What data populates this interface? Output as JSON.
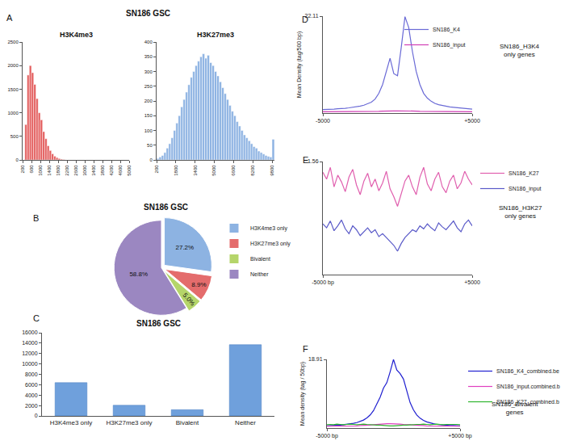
{
  "chart_data": [
    {
      "panel_label": "A",
      "title": "SN186 GSC",
      "subtitle": "H3K4me3",
      "type": "histogram",
      "bins": [
        300,
        400,
        500,
        600,
        700,
        800,
        900,
        1000,
        1100,
        1200,
        1300,
        1400,
        1500,
        1600,
        1700,
        1800,
        1900,
        2000,
        2100
      ],
      "counts": [
        750,
        1800,
        2000,
        1850,
        1600,
        1300,
        1000,
        850,
        600,
        450,
        300,
        200,
        130,
        80,
        50,
        30,
        15,
        8
      ],
      "color": "#e35d5d",
      "xlim": [
        200,
        5000
      ],
      "xticks": [
        200,
        600,
        1000,
        1400,
        1800,
        2200,
        2600,
        3000,
        3400,
        3800,
        4200,
        4600,
        5000
      ],
      "ylim": [
        0,
        2500
      ],
      "yticks": [
        0,
        500,
        1000,
        1500,
        2000,
        2500
      ],
      "grid": false
    },
    {
      "subtitle": "H3K27me3",
      "type": "histogram",
      "bins": [
        200,
        400,
        600,
        800,
        1000,
        1200,
        1400,
        1600,
        1800,
        2000,
        2200,
        2400,
        2600,
        2800,
        3000,
        3200,
        3400,
        3600,
        3800,
        4000,
        4200,
        4400,
        4600,
        4800,
        5000,
        5200,
        5400,
        5600,
        5800,
        6000,
        6200,
        6400,
        6600,
        6800,
        7000,
        7200,
        7400,
        7600,
        7800,
        8000,
        8200,
        8400,
        8600,
        8800,
        9000,
        9200,
        9400,
        9600,
        9800,
        10000
      ],
      "counts": [
        5,
        10,
        15,
        25,
        40,
        55,
        75,
        100,
        125,
        150,
        180,
        205,
        230,
        255,
        280,
        300,
        320,
        335,
        350,
        360,
        345,
        355,
        330,
        320,
        300,
        285,
        265,
        245,
        225,
        205,
        185,
        165,
        150,
        130,
        115,
        100,
        85,
        75,
        65,
        55,
        45,
        40,
        30,
        25,
        20,
        15,
        12,
        10,
        70
      ],
      "color": "#8fb4e3",
      "xlim": [
        200,
        10000
      ],
      "xticks": [
        200,
        1800,
        3400,
        5000,
        6600,
        8200,
        9800
      ],
      "ylim": [
        0,
        400
      ],
      "yticks": [
        0,
        50,
        100,
        150,
        200,
        250,
        300,
        350,
        400
      ],
      "grid": false
    },
    {
      "panel_label": "B",
      "title": "SN186 GSC",
      "type": "pie",
      "categories": [
        "H3K4me3 only",
        "H3K27me3 only",
        "Bivalent",
        "Neither"
      ],
      "values": [
        27.2,
        8.9,
        5.0,
        58.8
      ],
      "value_labels": [
        "27.2%",
        "8.9%",
        "5.0%",
        "58.8%"
      ],
      "colors": [
        "#8db3e2",
        "#e46c6c",
        "#b5d56a",
        "#9b87c1"
      ],
      "legend": "right",
      "data_labels": true
    },
    {
      "panel_label": "C",
      "title": "SN186 GSC",
      "type": "bar",
      "categories": [
        "H3K4me3 only",
        "H3K27me3 only",
        "Bivalent",
        "Neither"
      ],
      "values": [
        6400,
        2050,
        1200,
        13700
      ],
      "color": "#6fa0dc",
      "ylim": [
        0,
        16000
      ],
      "yticks": [
        0,
        2000,
        4000,
        6000,
        8000,
        10000,
        12000,
        14000,
        16000
      ],
      "grid": false
    },
    {
      "panel_label": "D",
      "type": "line",
      "x": [
        -5000,
        -4750,
        -4500,
        -4250,
        -4000,
        -3750,
        -3500,
        -3250,
        -3000,
        -2750,
        -2500,
        -2250,
        -2000,
        -1750,
        -1500,
        -1250,
        -1000,
        -750,
        -500,
        -250,
        0,
        250,
        500,
        750,
        1000,
        1250,
        1500,
        1750,
        2000,
        2250,
        2500,
        2750,
        3000,
        3250,
        3500,
        3750,
        4000,
        4250,
        4500,
        4750,
        5000
      ],
      "series": [
        {
          "name": "SN186_K4",
          "color": "#6a6ad6",
          "values": [
            0.8,
            0.8,
            0.9,
            0.9,
            1.0,
            1.0,
            1.1,
            1.2,
            1.3,
            1.4,
            1.6,
            1.8,
            2.1,
            2.5,
            3.2,
            4.5,
            6.5,
            9.5,
            12.5,
            9.0,
            8.5,
            15.0,
            22.0,
            19.5,
            14.0,
            9.5,
            6.5,
            4.5,
            3.4,
            2.7,
            2.2,
            1.9,
            1.7,
            1.5,
            1.4,
            1.3,
            1.2,
            1.1,
            1.0,
            1.0,
            0.9
          ]
        },
        {
          "name": "SN186_input",
          "color": "#d13fb5",
          "values": [
            0.3,
            0.3,
            0.35,
            0.3,
            0.3,
            0.32,
            0.3,
            0.3,
            0.33,
            0.3,
            0.3,
            0.32,
            0.35,
            0.35,
            0.4,
            0.4,
            0.45,
            0.5,
            0.5,
            0.5,
            0.5,
            0.5,
            0.55,
            0.5,
            0.5,
            0.45,
            0.4,
            0.4,
            0.35,
            0.35,
            0.33,
            0.3,
            0.3,
            0.32,
            0.3,
            0.3,
            0.3,
            0.32,
            0.3,
            0.3,
            0.3
          ]
        }
      ],
      "xlim": [
        -5000,
        5000
      ],
      "xticks": [
        {
          "value": -5000,
          "label": "-5000"
        },
        {
          "value": 5000,
          "label": "+5000"
        }
      ],
      "ylim": [
        0,
        22.11
      ],
      "yticks": [
        22.11
      ],
      "y_label": "Mean Density (tag/500 bp)",
      "legend": "top right",
      "annotation": [
        "SN186_H3K4",
        "only genes"
      ],
      "grid": false
    },
    {
      "panel_label": "E",
      "type": "line",
      "x": [
        -5000,
        -4750,
        -4500,
        -4250,
        -4000,
        -3750,
        -3500,
        -3250,
        -3000,
        -2750,
        -2500,
        -2250,
        -2000,
        -1750,
        -1500,
        -1250,
        -1000,
        -750,
        -500,
        -250,
        0,
        250,
        500,
        750,
        1000,
        1250,
        1500,
        1750,
        2000,
        2250,
        2500,
        2750,
        3000,
        3250,
        3500,
        3750,
        4000,
        4250,
        4500,
        4750,
        5000
      ],
      "series": [
        {
          "name": "SN186_K27",
          "color": "#e05fae",
          "values": [
            1.45,
            1.38,
            1.5,
            1.3,
            1.42,
            1.35,
            1.25,
            1.4,
            1.48,
            1.32,
            1.22,
            1.36,
            1.44,
            1.3,
            1.38,
            1.26,
            1.34,
            1.46,
            1.28,
            1.2,
            1.1,
            1.24,
            1.36,
            1.42,
            1.3,
            1.22,
            1.4,
            1.5,
            1.33,
            1.26,
            1.38,
            1.45,
            1.3,
            1.24,
            1.36,
            1.42,
            1.28,
            1.34,
            1.46,
            1.38,
            1.32
          ]
        },
        {
          "name": "SN186_input",
          "color": "#5a5ac8",
          "values": [
            0.92,
            0.88,
            0.95,
            0.85,
            0.9,
            0.96,
            0.87,
            0.82,
            0.9,
            0.86,
            0.8,
            0.84,
            0.88,
            0.83,
            0.86,
            0.79,
            0.82,
            0.78,
            0.74,
            0.7,
            0.64,
            0.72,
            0.78,
            0.82,
            0.86,
            0.84,
            0.9,
            0.87,
            0.92,
            0.88,
            0.85,
            0.93,
            0.89,
            0.86,
            0.91,
            0.95,
            0.88,
            0.84,
            0.92,
            0.96,
            0.9
          ]
        }
      ],
      "xlim": [
        -5000,
        5000
      ],
      "xticks": [
        {
          "value": -5000,
          "label": "-5000 bp"
        },
        {
          "value": 5000,
          "label": "+5000"
        }
      ],
      "ylim": [
        0.4,
        1.56
      ],
      "yticks": [
        1.56
      ],
      "legend": "right",
      "annotation": [
        "SN186_H3K27",
        "only genes"
      ],
      "grid": false
    },
    {
      "panel_label": "F",
      "type": "line",
      "x": [
        -5000,
        -4750,
        -4500,
        -4250,
        -4000,
        -3750,
        -3500,
        -3250,
        -3000,
        -2750,
        -2500,
        -2250,
        -2000,
        -1750,
        -1500,
        -1250,
        -1000,
        -750,
        -500,
        -250,
        0,
        250,
        500,
        750,
        1000,
        1250,
        1500,
        1750,
        2000,
        2250,
        2500,
        2750,
        3000,
        3250,
        3500,
        3750,
        4000,
        4250,
        4500,
        4750,
        5000
      ],
      "series": [
        {
          "name": "SN186_K4_combined.be",
          "color": "#1f1fd0",
          "values": [
            0.6,
            0.7,
            0.7,
            0.8,
            0.8,
            0.9,
            1.0,
            1.1,
            1.3,
            1.5,
            1.8,
            2.2,
            2.8,
            3.6,
            4.8,
            6.5,
            8.5,
            11.0,
            12.5,
            15.5,
            18.9,
            16.0,
            15.0,
            13.5,
            10.0,
            7.0,
            5.0,
            3.6,
            2.7,
            2.1,
            1.7,
            1.4,
            1.2,
            1.0,
            0.9,
            0.8,
            0.8,
            0.7,
            0.7,
            0.6,
            0.6
          ]
        },
        {
          "name": "SN186_input.combined.b",
          "color": "#e040c0",
          "values": [
            0.5,
            0.5,
            0.6,
            0.5,
            0.5,
            0.6,
            0.6,
            0.5,
            0.6,
            0.6,
            0.7,
            0.7,
            0.8,
            0.8,
            0.9,
            1.0,
            1.0,
            1.1,
            1.2,
            1.2,
            1.2,
            1.1,
            1.1,
            1.0,
            1.0,
            0.9,
            0.8,
            0.8,
            0.7,
            0.7,
            0.6,
            0.6,
            0.6,
            0.5,
            0.5,
            0.6,
            0.5,
            0.5,
            0.6,
            0.5,
            0.5
          ]
        },
        {
          "name": "SN186_K27_combined.b",
          "color": "#2db52d",
          "values": [
            0.9,
            1.0,
            0.9,
            1.1,
            1.0,
            0.9,
            1.0,
            1.1,
            1.0,
            0.9,
            1.0,
            1.1,
            1.0,
            0.9,
            0.9,
            0.8,
            0.8,
            0.7,
            0.7,
            0.6,
            0.6,
            0.7,
            0.7,
            0.8,
            0.8,
            0.9,
            0.9,
            1.0,
            1.0,
            1.1,
            1.0,
            0.9,
            1.0,
            1.1,
            1.0,
            0.9,
            1.0,
            1.0,
            1.1,
            1.0,
            0.9
          ]
        }
      ],
      "xlim": [
        -5000,
        5000
      ],
      "xticks": [
        {
          "value": -5000,
          "label": "-5000 bp"
        },
        {
          "value": 5000,
          "label": "+5000 bp"
        }
      ],
      "ylim": [
        0,
        18.91
      ],
      "yticks": [
        18.91
      ],
      "y_label": "Mean density (tag / 50bp)",
      "legend": "right",
      "annotation": [
        "SN186_Bivalent",
        "genes"
      ],
      "grid": false
    }
  ]
}
